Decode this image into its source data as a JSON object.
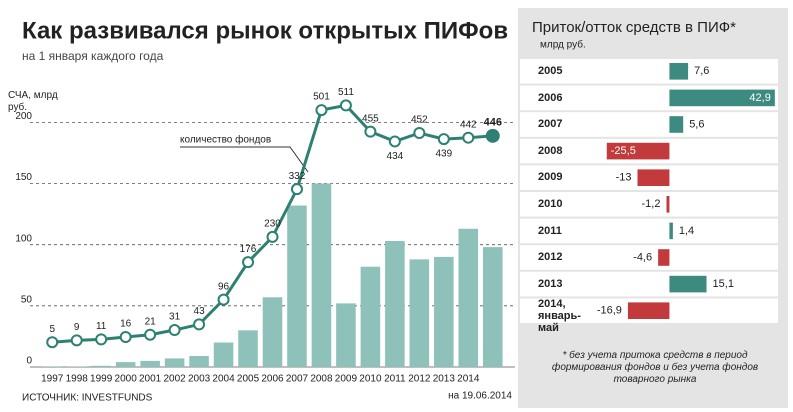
{
  "chart_data": [
    {
      "type": "bar",
      "title": "Как развивался рынок открытых ПИФов",
      "subtitle": "на 1 января каждого года",
      "y_label": "СЧА, млрд руб.",
      "source": "ИСТОЧНИК: INVESTFUNDS",
      "categories": [
        "1997",
        "1998",
        "1999",
        "2000",
        "2001",
        "2002",
        "2003",
        "2004",
        "2005",
        "2006",
        "2007",
        "2008",
        "2009",
        "2010",
        "2011",
        "2012",
        "2013",
        "2014",
        "на 19.06.2014"
      ],
      "values": [
        0.5,
        0.3,
        1,
        4,
        5,
        7,
        9,
        20,
        30,
        57,
        132,
        150,
        52,
        82,
        103,
        88,
        90,
        113,
        98
      ],
      "color": "#8fc1bb",
      "ylim": [
        0,
        215
      ],
      "yticks": [
        0,
        50,
        100,
        150,
        200
      ],
      "grid": true,
      "line": {
        "name": "количество фондов",
        "color": "#2e8072",
        "axis": "y2",
        "values": [
          5,
          9,
          11,
          16,
          21,
          31,
          43,
          96,
          176,
          230,
          332,
          501,
          511,
          455,
          434,
          452,
          439,
          442,
          446
        ]
      },
      "y2lim": [
        -48,
        514
      ]
    },
    {
      "type": "hbar",
      "title": "Приток/отток средств в ПИФ*",
      "subtitle": "млрд руб.",
      "categories": [
        "2005",
        "2006",
        "2007",
        "2008",
        "2009",
        "2010",
        "2011",
        "2012",
        "2013",
        "2014, январь-май"
      ],
      "values": [
        7.6,
        42.9,
        5.6,
        -25.5,
        -13,
        -1.2,
        1.4,
        -4.6,
        15.1,
        -16.9
      ],
      "value_labels": [
        "7,6",
        "42,9",
        "5,6",
        "-25,5",
        "-13",
        "-1,2",
        "1,4",
        "-4,6",
        "15,1",
        "-16,9"
      ],
      "positive_color": "#3d8a80",
      "negative_color": "#c23a3c",
      "xlim": [
        -60,
        45
      ],
      "note": "* без учета притока средств в период формирования фондов и без учета фондов товарного рынка"
    }
  ]
}
